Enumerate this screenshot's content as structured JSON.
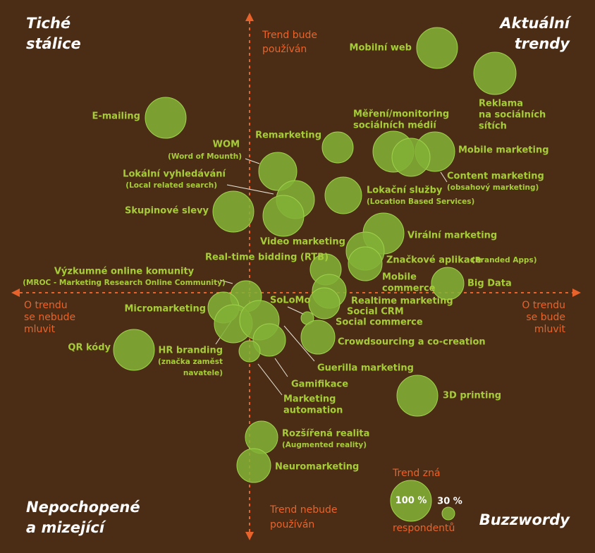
{
  "quadrants": {
    "top_left": [
      "Tiché",
      "stálice"
    ],
    "top_right": [
      "Aktuální",
      "trendy"
    ],
    "bottom_left": [
      "Nepochopené",
      "a mizející"
    ],
    "bottom_right": [
      "Buzzwordy"
    ]
  },
  "axes": {
    "up": [
      "Trend bude",
      "používán"
    ],
    "down": [
      "Trend nebude",
      "používán"
    ],
    "left": [
      "O trendu",
      "se nebude",
      "mluvit"
    ],
    "right": [
      "O trendu",
      "se bude",
      "mluvit"
    ]
  },
  "nodes": [
    {
      "label": [
        "Mobilní web"
      ]
    },
    {
      "label": [
        "Reklama",
        "na sociálních",
        "sítích"
      ]
    },
    {
      "label": [
        "E-mailing"
      ]
    },
    {
      "label": [
        "WOM"
      ],
      "note": [
        "(Word of Mounth)"
      ]
    },
    {
      "label": [
        "Remarketing"
      ]
    },
    {
      "label": [
        "Měření/monitoring",
        "sociálních médií"
      ]
    },
    {
      "label": [
        "Mobile marketing"
      ]
    },
    {
      "label": [
        "Content marketing"
      ],
      "note": [
        "(obsahový marketing)"
      ]
    },
    {
      "label": [
        "Lokální vyhledávání"
      ],
      "note": [
        "(Local related search)"
      ]
    },
    {
      "label": [
        "Lokační služby"
      ],
      "note": [
        "(Location Based Services)"
      ]
    },
    {
      "label": [
        "Skupinové slevy"
      ]
    },
    {
      "label": [
        "Video marketing"
      ]
    },
    {
      "label": [
        "Virální marketing"
      ]
    },
    {
      "label": [
        "Real-time bidding (RTB)"
      ]
    },
    {
      "label": [
        "Značkové aplikace"
      ],
      "note": [
        "(Branded Apps)"
      ]
    },
    {
      "label": [
        "Výzkumné online komunity"
      ],
      "note": [
        "(MROC - Marketing Research Online Community)"
      ]
    },
    {
      "label": [
        "Mobile",
        "commerce"
      ]
    },
    {
      "label": [
        "Big Data"
      ]
    },
    {
      "label": [
        "Micromarketing"
      ]
    },
    {
      "label": [
        "SoLoMo"
      ]
    },
    {
      "label": [
        "Realtime marketing"
      ]
    },
    {
      "label": [
        "Social CRM"
      ]
    },
    {
      "label": [
        "Social commerce"
      ]
    },
    {
      "label": [
        "Crowdsourcing a co-creation"
      ]
    },
    {
      "label": [
        "QR kódy"
      ]
    },
    {
      "label": [
        "HR branding"
      ],
      "note": [
        "(značka zaměst",
        "navatele)"
      ]
    },
    {
      "label": [
        "Guerilla marketing"
      ]
    },
    {
      "label": [
        "Gamifikace"
      ]
    },
    {
      "label": [
        "Marketing",
        "automation"
      ]
    },
    {
      "label": [
        "3D printing"
      ]
    },
    {
      "label": [
        "Rozšířená realita"
      ],
      "note": [
        "(Augmented reality)"
      ]
    },
    {
      "label": [
        "Neuromarketing"
      ]
    }
  ],
  "legend": {
    "title": "Trend zná",
    "large": "100 %",
    "small": "30 %",
    "unit": "respondentů"
  }
}
